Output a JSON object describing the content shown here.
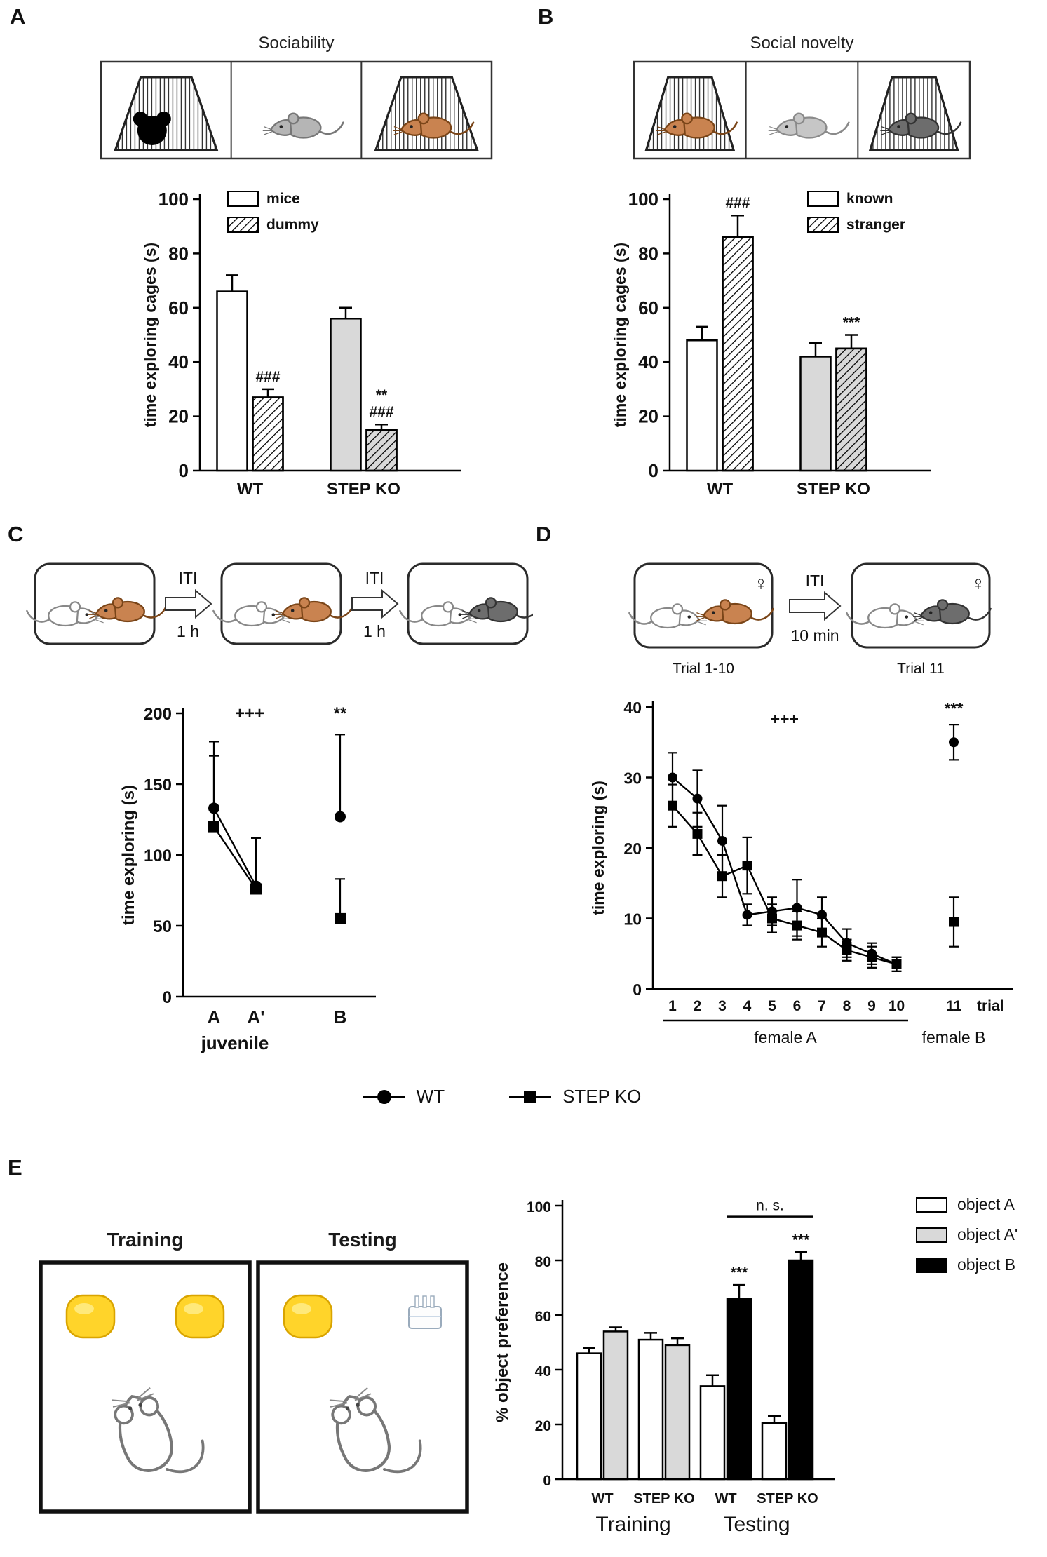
{
  "panels": {
    "A": {
      "label": "A",
      "title": "Sociability",
      "cells": [
        {
          "cage": true,
          "occ": "dummy"
        },
        {
          "cage": false,
          "occ": "mouse",
          "fill": "#b5b5b5",
          "stroke": "#777777"
        },
        {
          "cage": true,
          "occ": "mouse",
          "fill": "#c98350",
          "stroke": "#7a4518"
        }
      ]
    },
    "B": {
      "label": "B",
      "title": "Social novelty",
      "cells": [
        {
          "cage": true,
          "occ": "mouse",
          "fill": "#c98350",
          "stroke": "#7a4518"
        },
        {
          "cage": false,
          "occ": "mouse",
          "fill": "#c6c6c6",
          "stroke": "#8a8a8a"
        },
        {
          "cage": true,
          "occ": "mouse",
          "fill": "#6d6d6d",
          "stroke": "#333333"
        }
      ]
    },
    "C": {
      "label": "C",
      "iti": "ITI",
      "interval": "1 h",
      "pairs": [
        {
          "fill": "#c98350",
          "stroke": "#7a4518"
        },
        {
          "fill": "#c98350",
          "stroke": "#7a4518"
        },
        {
          "fill": "#6d6d6d",
          "stroke": "#333333"
        }
      ]
    },
    "D": {
      "label": "D",
      "iti": "ITI",
      "interval": "10 min",
      "trial_first": "Trial 1-10",
      "trial_second": "Trial 11",
      "female_symbol": "♀",
      "pairs": [
        {
          "fill": "#c98350",
          "stroke": "#7a4518"
        },
        {
          "fill": "#6d6d6d",
          "stroke": "#333333"
        }
      ]
    },
    "E": {
      "label": "E",
      "box_titles": [
        "Training",
        "Testing"
      ]
    }
  },
  "main_legend": [
    {
      "label": "WT",
      "marker": "circle"
    },
    {
      "label": "STEP KO",
      "marker": "square"
    }
  ],
  "chart_data": [
    {
      "id": "A",
      "type": "bar",
      "title": "Sociability",
      "ylabel": "time exploring cages (s)",
      "ylim": [
        0,
        100
      ],
      "yticks": [
        0,
        20,
        40,
        60,
        80,
        100
      ],
      "legend": [
        {
          "label": "mice",
          "fill": "#ffffff",
          "hatch": false
        },
        {
          "label": "dummy",
          "fill": "#ffffff",
          "hatch": true
        }
      ],
      "groups": [
        {
          "label": "WT",
          "bars": [
            {
              "series": "mice",
              "value": 66,
              "error": 6,
              "fill": "#ffffff",
              "hatch": false,
              "ann": []
            },
            {
              "series": "dummy",
              "value": 27,
              "error": 3,
              "fill": "#ffffff",
              "hatch": true,
              "ann": [
                "###"
              ]
            }
          ]
        },
        {
          "label": "STEP KO",
          "bars": [
            {
              "series": "mice",
              "value": 56,
              "error": 4,
              "fill": "#d9d9d9",
              "hatch": false,
              "ann": []
            },
            {
              "series": "dummy",
              "value": 15,
              "error": 2,
              "fill": "#d9d9d9",
              "hatch": true,
              "ann": [
                "**",
                "###"
              ]
            }
          ]
        }
      ]
    },
    {
      "id": "B",
      "type": "bar",
      "title": "Social novelty",
      "ylabel": "time exploring cages (s)",
      "ylim": [
        0,
        100
      ],
      "yticks": [
        0,
        20,
        40,
        60,
        80,
        100
      ],
      "legend": [
        {
          "label": "known",
          "fill": "#ffffff",
          "hatch": false
        },
        {
          "label": "stranger",
          "fill": "#ffffff",
          "hatch": true
        }
      ],
      "groups": [
        {
          "label": "WT",
          "bars": [
            {
              "series": "known",
              "value": 48,
              "error": 5,
              "fill": "#ffffff",
              "hatch": false,
              "ann": []
            },
            {
              "series": "stranger",
              "value": 86,
              "error": 8,
              "fill": "#ffffff",
              "hatch": true,
              "ann": [
                "###"
              ]
            }
          ]
        },
        {
          "label": "STEP KO",
          "bars": [
            {
              "series": "known",
              "value": 42,
              "error": 5,
              "fill": "#d9d9d9",
              "hatch": false,
              "ann": []
            },
            {
              "series": "stranger",
              "value": 45,
              "error": 5,
              "fill": "#d9d9d9",
              "hatch": true,
              "ann": [
                "***"
              ]
            }
          ]
        }
      ]
    },
    {
      "id": "C",
      "type": "scatter",
      "ylabel": "time exploring (s)",
      "ylim": [
        0,
        200
      ],
      "yticks": [
        0,
        50,
        100,
        150,
        200
      ],
      "xticks": [
        "A",
        "A'",
        "B"
      ],
      "xlabel": "juvenile",
      "error_dir": "up",
      "series": [
        {
          "name": "WT",
          "marker": "circle",
          "values": [
            133,
            78,
            127
          ],
          "errors": [
            47,
            34,
            58
          ],
          "connect_through": 2
        },
        {
          "name": "STEP KO",
          "marker": "square",
          "values": [
            120,
            76,
            55
          ],
          "errors": [
            50,
            36,
            28
          ],
          "connect_through": 2
        }
      ],
      "annotations": [
        {
          "text": "+++",
          "xi": 0.85,
          "y": 196
        },
        {
          "text": "**",
          "xi": 2,
          "y": 196
        }
      ]
    },
    {
      "id": "D",
      "type": "scatter",
      "ylabel": "time exploring (s)",
      "ylim": [
        0,
        40
      ],
      "yticks": [
        0,
        10,
        20,
        30,
        40
      ],
      "xticks": [
        "1",
        "2",
        "3",
        "4",
        "5",
        "6",
        "7",
        "8",
        "9",
        "10",
        "11"
      ],
      "xlabel": "trial",
      "error_dir": "both",
      "sub_labels": [
        {
          "text": "female A"
        },
        {
          "text": "female B"
        }
      ],
      "series": [
        {
          "name": "WT",
          "marker": "circle",
          "values": [
            30,
            27,
            21,
            10.5,
            11,
            11.5,
            10.5,
            6.5,
            5,
            3.5,
            35
          ],
          "errors": [
            3.5,
            4,
            5,
            1.5,
            2,
            4,
            2.5,
            2,
            1.5,
            1,
            2.5
          ],
          "connect_through": 10
        },
        {
          "name": "STEP KO",
          "marker": "square",
          "values": [
            26,
            22,
            16,
            17.5,
            10,
            9,
            8,
            5.5,
            4.5,
            3.5,
            9.5
          ],
          "errors": [
            3,
            3,
            3,
            4,
            2,
            2,
            2,
            1.5,
            1.5,
            1,
            3.5
          ],
          "connect_through": 10
        }
      ],
      "annotations": [
        {
          "text": "+++",
          "xi": 4.5,
          "y": 37.5
        },
        {
          "text": "***",
          "xi": 10,
          "y": 39
        }
      ]
    },
    {
      "id": "E",
      "type": "bar",
      "ylabel": "% object preference",
      "ylim": [
        0,
        100
      ],
      "yticks": [
        0,
        20,
        40,
        60,
        80,
        100
      ],
      "legend": [
        {
          "label": "object A",
          "fill": "#ffffff",
          "hatch": false
        },
        {
          "label": "object A'",
          "fill": "#d9d9d9",
          "hatch": false
        },
        {
          "label": "object B",
          "fill": "#000000",
          "hatch": false
        }
      ],
      "groups": [
        {
          "label": "WT",
          "section": "Training",
          "bars": [
            {
              "series": "object A",
              "value": 46,
              "error": 2,
              "fill": "#ffffff",
              "hatch": false,
              "ann": []
            },
            {
              "series": "object A'",
              "value": 54,
              "error": 1.5,
              "fill": "#d9d9d9",
              "hatch": false,
              "ann": []
            }
          ]
        },
        {
          "label": "STEP KO",
          "section": "Training",
          "bars": [
            {
              "series": "object A",
              "value": 51,
              "error": 2.5,
              "fill": "#ffffff",
              "hatch": false,
              "ann": []
            },
            {
              "series": "object A'",
              "value": 49,
              "error": 2.5,
              "fill": "#d9d9d9",
              "hatch": false,
              "ann": []
            }
          ]
        },
        {
          "label": "WT",
          "section": "Testing",
          "bars": [
            {
              "series": "object A",
              "value": 34,
              "error": 4,
              "fill": "#ffffff",
              "hatch": false,
              "ann": []
            },
            {
              "series": "object B",
              "value": 66,
              "error": 5,
              "fill": "#000000",
              "hatch": false,
              "ann": [
                "***"
              ]
            }
          ]
        },
        {
          "label": "STEP KO",
          "section": "Testing",
          "bars": [
            {
              "series": "object A",
              "value": 20.5,
              "error": 2.5,
              "fill": "#ffffff",
              "hatch": false,
              "ann": []
            },
            {
              "series": "object B",
              "value": 80,
              "error": 3,
              "fill": "#000000",
              "hatch": false,
              "ann": [
                "***"
              ]
            }
          ]
        }
      ],
      "section_labels": [
        "Training",
        "Testing"
      ],
      "ns_bracket": {
        "text": "n. s.",
        "y": 96,
        "from": [
          2,
          1
        ],
        "to": [
          3,
          1
        ]
      }
    }
  ]
}
